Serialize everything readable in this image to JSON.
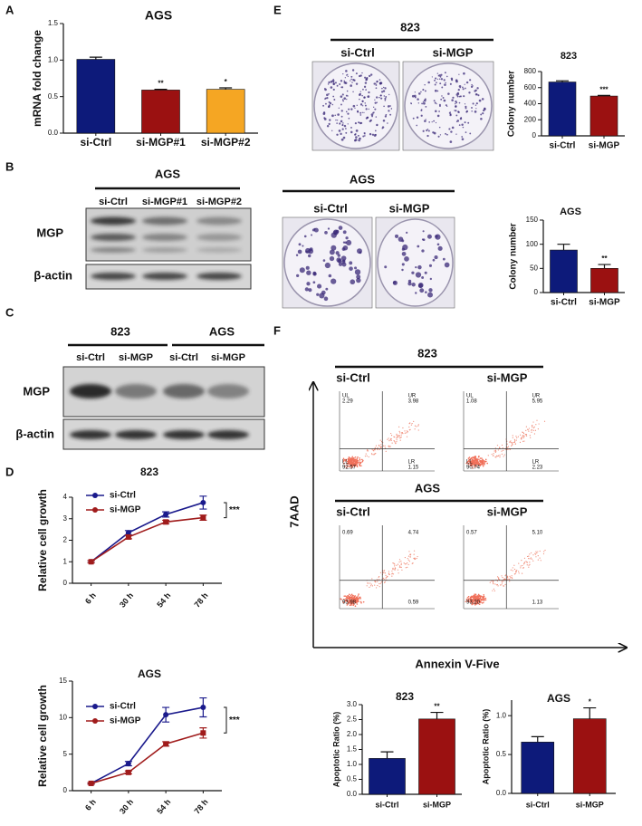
{
  "panel_labels": [
    "A",
    "B",
    "C",
    "D",
    "E",
    "F"
  ],
  "chart_data": [
    {
      "type": "bar",
      "title": "AGS",
      "y_label": "mRNA fold change",
      "categories": [
        "si-Ctrl",
        "si-MGP#1",
        "si-MGP#2"
      ],
      "values": [
        1.01,
        0.59,
        0.6
      ],
      "errors": [
        0.03,
        0.01,
        0.02
      ],
      "colors": [
        "#0d1a7a",
        "#9b1111",
        "#f5a623"
      ],
      "annotations": [
        null,
        "**",
        "*"
      ],
      "ylim": [
        0,
        1.5
      ],
      "yticks": [
        {
          "value": 0,
          "label": "0.0"
        },
        {
          "value": 0.5,
          "label": "0.5"
        },
        {
          "value": 1,
          "label": "1.0"
        },
        {
          "value": 1.5,
          "label": "1.5"
        }
      ]
    },
    {
      "type": "line",
      "title": "823",
      "y_label": "Relative cell growth",
      "categories": [
        "6 h",
        "30 h",
        "54 h",
        "78 h"
      ],
      "series": [
        {
          "name": "si-Ctrl",
          "color": "#1a1a8c",
          "values": [
            1,
            2.35,
            3.2,
            3.75
          ],
          "errors": [
            0.05,
            0.1,
            0.12,
            0.3
          ]
        },
        {
          "name": "si-MGP",
          "color": "#a01c1c",
          "values": [
            1,
            2.15,
            2.85,
            3.05
          ],
          "errors": [
            0.05,
            0.08,
            0.08,
            0.12
          ]
        }
      ],
      "annotation": "***",
      "ylim": [
        0,
        4
      ],
      "yticks": [
        0,
        1,
        2,
        3,
        4
      ]
    },
    {
      "type": "line",
      "title": "AGS",
      "y_label": "Relative cell growth",
      "categories": [
        "6 h",
        "30 h",
        "54 h",
        "78 h"
      ],
      "series": [
        {
          "name": "si-Ctrl",
          "color": "#1a1a8c",
          "values": [
            1,
            3.7,
            10.4,
            11.4
          ],
          "errors": [
            0.1,
            0.3,
            1.0,
            1.3
          ]
        },
        {
          "name": "si-MGP",
          "color": "#a01c1c",
          "values": [
            1,
            2.5,
            6.4,
            7.9
          ],
          "errors": [
            0.1,
            0.2,
            0.3,
            0.7
          ]
        }
      ],
      "annotation": "***",
      "ylim": [
        0,
        15
      ],
      "yticks": [
        0,
        5,
        10,
        15
      ]
    },
    {
      "type": "bar",
      "title": "823",
      "y_label": "Colony number",
      "categories": [
        "si-Ctrl",
        "si-MGP"
      ],
      "values": [
        670,
        495
      ],
      "errors": [
        15,
        8
      ],
      "colors": [
        "#0d1a7a",
        "#9b1111"
      ],
      "annotations": [
        null,
        "***"
      ],
      "ylim": [
        0,
        800
      ],
      "yticks": [
        0,
        200,
        400,
        600,
        800
      ]
    },
    {
      "type": "bar",
      "title": "AGS",
      "y_label": "Colony number",
      "categories": [
        "si-Ctrl",
        "si-MGP"
      ],
      "values": [
        88,
        50
      ],
      "errors": [
        12,
        8
      ],
      "colors": [
        "#0d1a7a",
        "#9b1111"
      ],
      "annotations": [
        null,
        "**"
      ],
      "ylim": [
        0,
        150
      ],
      "yticks": [
        0,
        50,
        100,
        150
      ]
    },
    {
      "type": "bar",
      "title": "823",
      "y_label": "Apoptotic Ratio (%)",
      "categories": [
        "si-Ctrl",
        "si-MGP"
      ],
      "values": [
        1.2,
        2.52
      ],
      "errors": [
        0.22,
        0.22
      ],
      "colors": [
        "#0d1a7a",
        "#9b1111"
      ],
      "annotations": [
        null,
        "**"
      ],
      "ylim": [
        0,
        3
      ],
      "yticks": [
        {
          "value": 0,
          "label": "0.0"
        },
        {
          "value": 0.5,
          "label": "0.5"
        },
        {
          "value": 1,
          "label": "1.0"
        },
        {
          "value": 1.5,
          "label": "1.5"
        },
        {
          "value": 2,
          "label": "2.0"
        },
        {
          "value": 2.5,
          "label": "2.5"
        },
        {
          "value": 3,
          "label": "3.0"
        }
      ]
    },
    {
      "type": "bar",
      "title": "AGS",
      "y_label": "Apoptotic Ratio (%)",
      "categories": [
        "si-Ctrl",
        "si-MGP"
      ],
      "values": [
        0.66,
        0.96
      ],
      "errors": [
        0.07,
        0.14
      ],
      "colors": [
        "#0d1a7a",
        "#9b1111"
      ],
      "annotations": [
        null,
        "*"
      ],
      "ylim": [
        0,
        1.2
      ],
      "yticks": [
        {
          "value": 0,
          "label": "0.0"
        },
        {
          "value": 0.5,
          "label": "0.5"
        },
        {
          "value": 1,
          "label": "1.0"
        }
      ]
    }
  ],
  "blots": [
    {
      "titles": [
        "AGS"
      ],
      "lanes": [
        "si-Ctrl",
        "si-MGP#1",
        "si-MGP#2"
      ],
      "rows": [
        "MGP",
        "β-actin"
      ]
    },
    {
      "titles": [
        "823",
        "AGS"
      ],
      "lanes": [
        "si-Ctrl",
        "si-MGP",
        "si-Ctrl",
        "si-MGP"
      ],
      "rows": [
        "MGP",
        "β-actin"
      ]
    }
  ],
  "colony": [
    {
      "title": "823",
      "lanes": [
        "si-Ctrl",
        "si-MGP"
      ]
    },
    {
      "title": "AGS",
      "lanes": [
        "si-Ctrl",
        "si-MGP"
      ]
    }
  ],
  "flow": {
    "y_label": "7AAD",
    "x_label": "Annexin V-Five",
    "groups": [
      {
        "title": "823",
        "columns": [
          "si-Ctrl",
          "si-MGP"
        ],
        "quadrant_labels": [
          "UL",
          "UR",
          "LL",
          "LR"
        ],
        "plots": [
          [
            "2.29",
            "3.98",
            "92.57",
            "1.15"
          ],
          [
            "1.08",
            "5.95",
            "90.74",
            "2.23"
          ]
        ]
      },
      {
        "title": "AGS",
        "columns": [
          "si-Ctrl",
          "si-MGP"
        ],
        "plots": [
          [
            "0.69",
            "4.74",
            "93.98",
            "0.59"
          ],
          [
            "0.57",
            "5.10",
            "93.20",
            "1.13"
          ]
        ]
      }
    ]
  }
}
